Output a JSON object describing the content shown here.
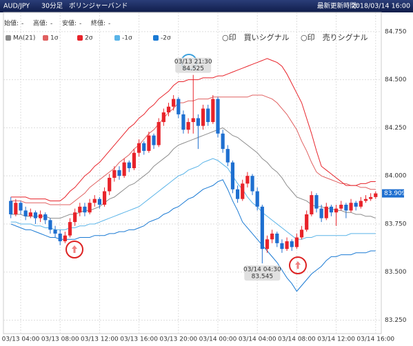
{
  "header": {
    "pair": "AUD/JPY",
    "timeframe": "30分足",
    "indicator": "ボリンジャーバンド",
    "updated_label": "最新更新時間:",
    "updated": "2018/03/14 16:00"
  },
  "ohlc_row": [
    {
      "label": "始値:",
      "value": "-"
    },
    {
      "label": "高値:",
      "value": "-"
    },
    {
      "label": "安値:",
      "value": "-"
    },
    {
      "label": "終値:",
      "value": "-"
    }
  ],
  "signal_legend": [
    {
      "text": "○印　買いシグナル",
      "color": "#e8232a"
    },
    {
      "text": "○印　売りシグナル",
      "color": "#3aa0dc"
    }
  ],
  "chart_data": {
    "type": "candlestick",
    "categories": [
      null,
      null,
      "03/13 04:00",
      null,
      null,
      null,
      null,
      null,
      null,
      null,
      "03/13 08:00",
      null,
      null,
      null,
      null,
      null,
      null,
      null,
      "03/13 12:00",
      null,
      null,
      null,
      null,
      null,
      null,
      null,
      "03/13 16:00",
      null,
      null,
      null,
      null,
      null,
      null,
      null,
      "03/13 20:00",
      null,
      null,
      null,
      null,
      null,
      null,
      null,
      "03/14 00:00",
      null,
      null,
      null,
      null,
      null,
      null,
      null,
      "03/14 04:00",
      null,
      null,
      null,
      null,
      null,
      null,
      null,
      "03/14 08:00",
      null,
      null,
      null,
      null,
      null,
      null,
      null,
      "03/14 12:00",
      null,
      null,
      null,
      null,
      null,
      null,
      null,
      "03/14 16:00"
    ],
    "up_color": "#e8232a",
    "down_color": "#1e6fd0",
    "last_color": "#1e6fd0",
    "candles": {
      "open": [
        83.87,
        83.8,
        83.86,
        83.82,
        83.79,
        83.81,
        83.78,
        83.8,
        83.77,
        83.72,
        83.7,
        83.66,
        83.69,
        83.76,
        83.81,
        83.84,
        83.81,
        83.86,
        83.88,
        83.85,
        83.92,
        83.99,
        84.03,
        84.0,
        84.07,
        84.04,
        84.12,
        84.17,
        84.13,
        84.21,
        84.16,
        84.28,
        84.33,
        84.36,
        84.4,
        84.32,
        84.24,
        84.28,
        84.3,
        84.26,
        84.35,
        84.28,
        84.4,
        84.22,
        84.14,
        84.07,
        83.93,
        83.88,
        83.96,
        84.0,
        83.92,
        83.84,
        83.62,
        83.67,
        83.7,
        83.65,
        83.62,
        83.66,
        83.63,
        83.68,
        83.72,
        83.8,
        83.9,
        83.83,
        83.78,
        83.84,
        83.81,
        83.83,
        83.85,
        83.82,
        83.86,
        83.84,
        83.87,
        83.88,
        83.89
      ],
      "high": [
        83.89,
        83.88,
        83.87,
        83.84,
        83.83,
        83.82,
        83.82,
        83.81,
        83.78,
        83.74,
        83.72,
        83.71,
        83.78,
        83.83,
        83.86,
        83.86,
        83.88,
        83.9,
        83.89,
        83.94,
        84.01,
        84.05,
        84.05,
        84.09,
        84.08,
        84.14,
        84.19,
        84.18,
        84.23,
        84.22,
        84.3,
        84.35,
        84.38,
        84.42,
        84.41,
        84.34,
        84.3,
        84.525,
        84.32,
        84.37,
        84.37,
        84.42,
        84.41,
        84.24,
        84.16,
        84.08,
        83.95,
        83.98,
        84.02,
        84.01,
        83.94,
        83.85,
        83.69,
        83.72,
        83.71,
        83.67,
        83.68,
        83.67,
        83.7,
        83.74,
        83.82,
        83.92,
        83.91,
        83.85,
        83.86,
        83.85,
        83.85,
        83.87,
        83.86,
        83.88,
        83.87,
        83.89,
        83.9,
        83.91,
        83.92
      ],
      "low": [
        83.78,
        83.79,
        83.8,
        83.77,
        83.78,
        83.75,
        83.76,
        83.75,
        83.7,
        83.68,
        83.64,
        83.65,
        83.68,
        83.74,
        83.79,
        83.79,
        83.8,
        83.84,
        83.83,
        83.84,
        83.9,
        83.97,
        83.98,
        83.99,
        84.02,
        84.03,
        84.1,
        84.11,
        84.12,
        84.14,
        84.15,
        84.26,
        84.31,
        84.34,
        84.3,
        84.22,
        84.22,
        84.22,
        84.14,
        84.24,
        84.26,
        84.27,
        84.2,
        84.12,
        84.05,
        83.91,
        83.86,
        83.87,
        83.94,
        83.9,
        83.82,
        83.545,
        83.6,
        83.65,
        83.63,
        83.6,
        83.61,
        83.61,
        83.62,
        83.67,
        83.71,
        83.79,
        83.81,
        83.76,
        83.77,
        83.79,
        83.74,
        83.82,
        83.78,
        83.81,
        83.82,
        83.83,
        83.86,
        83.87,
        83.88
      ],
      "close": [
        83.8,
        83.86,
        83.82,
        83.79,
        83.81,
        83.78,
        83.8,
        83.77,
        83.72,
        83.7,
        83.66,
        83.69,
        83.76,
        83.81,
        83.84,
        83.81,
        83.86,
        83.88,
        83.85,
        83.92,
        83.99,
        84.03,
        84.0,
        84.07,
        84.04,
        84.12,
        84.17,
        84.13,
        84.21,
        84.16,
        84.28,
        84.33,
        84.36,
        84.4,
        84.32,
        84.24,
        84.28,
        84.3,
        84.26,
        84.35,
        84.28,
        84.4,
        84.22,
        84.14,
        84.07,
        83.93,
        83.88,
        83.96,
        84.0,
        83.92,
        83.84,
        83.62,
        83.67,
        83.7,
        83.65,
        83.62,
        83.66,
        83.63,
        83.68,
        83.72,
        83.8,
        83.9,
        83.83,
        83.78,
        83.84,
        83.81,
        83.83,
        83.85,
        83.82,
        83.86,
        83.84,
        83.87,
        83.88,
        83.89,
        83.909
      ]
    },
    "last_label": "83.909",
    "series": [
      {
        "name": "MA(21)",
        "color": "#8c8c8c",
        "values": [
          83.8,
          83.8,
          83.8,
          83.79,
          83.79,
          83.79,
          83.79,
          83.79,
          83.78,
          83.78,
          83.78,
          83.79,
          83.8,
          83.8,
          83.81,
          83.82,
          83.82,
          83.83,
          83.84,
          83.86,
          83.88,
          83.89,
          83.91,
          83.93,
          83.95,
          83.96,
          83.98,
          84.0,
          84.02,
          84.05,
          84.07,
          84.09,
          84.11,
          84.14,
          84.16,
          84.17,
          84.18,
          84.19,
          84.2,
          84.21,
          84.22,
          84.23,
          84.24,
          84.25,
          84.23,
          84.21,
          84.2,
          84.18,
          84.16,
          84.14,
          84.12,
          84.09,
          84.07,
          84.04,
          84.02,
          83.99,
          83.95,
          83.92,
          83.89,
          83.88,
          83.87,
          83.85,
          83.84,
          83.84,
          83.83,
          83.83,
          83.82,
          83.82,
          83.81,
          83.81,
          83.8,
          83.8,
          83.79,
          83.79,
          83.78
        ]
      },
      {
        "name": "1σ",
        "color": "#e06060",
        "values": [
          83.87,
          83.87,
          83.87,
          83.86,
          83.86,
          83.86,
          83.86,
          83.86,
          83.85,
          83.85,
          83.85,
          83.85,
          83.85,
          83.87,
          83.89,
          83.91,
          83.94,
          83.96,
          83.98,
          84.0,
          84.02,
          84.04,
          84.07,
          84.09,
          84.11,
          84.14,
          84.16,
          84.19,
          84.22,
          84.24,
          84.27,
          84.3,
          84.33,
          84.35,
          84.38,
          84.38,
          84.39,
          84.39,
          84.4,
          84.4,
          84.4,
          84.41,
          84.41,
          84.41,
          84.41,
          84.41,
          84.41,
          84.41,
          84.41,
          84.42,
          84.42,
          84.42,
          84.41,
          84.4,
          84.38,
          84.35,
          84.32,
          84.28,
          84.24,
          84.18,
          84.13,
          84.07,
          84.02,
          84.0,
          83.99,
          83.98,
          83.97,
          83.96,
          83.96,
          83.95,
          83.95,
          83.94,
          83.94,
          83.93,
          83.93
        ]
      },
      {
        "name": "2σ",
        "color": "#e8232a",
        "values": [
          83.89,
          83.89,
          83.89,
          83.89,
          83.88,
          83.88,
          83.88,
          83.88,
          83.87,
          83.87,
          83.87,
          83.89,
          83.92,
          83.94,
          83.97,
          84.0,
          84.02,
          84.05,
          84.07,
          84.1,
          84.13,
          84.16,
          84.19,
          84.22,
          84.25,
          84.27,
          84.3,
          84.32,
          84.35,
          84.37,
          84.4,
          84.42,
          84.44,
          84.47,
          84.49,
          84.49,
          84.5,
          84.5,
          84.5,
          84.51,
          84.51,
          84.51,
          84.52,
          84.52,
          84.53,
          84.54,
          84.55,
          84.56,
          84.57,
          84.58,
          84.59,
          84.6,
          84.61,
          84.6,
          84.59,
          84.57,
          84.53,
          84.48,
          84.43,
          84.38,
          84.3,
          84.22,
          84.13,
          84.05,
          84.03,
          84.01,
          83.99,
          83.97,
          83.95,
          83.95,
          83.95,
          83.96,
          83.96,
          83.97,
          83.97
        ]
      },
      {
        "name": "-1σ",
        "color": "#5ab4e8",
        "values": [
          83.76,
          83.76,
          83.75,
          83.75,
          83.75,
          83.74,
          83.74,
          83.73,
          83.73,
          83.72,
          83.72,
          83.72,
          83.73,
          83.73,
          83.74,
          83.74,
          83.75,
          83.75,
          83.76,
          83.77,
          83.78,
          83.79,
          83.8,
          83.81,
          83.82,
          83.83,
          83.84,
          83.86,
          83.88,
          83.9,
          83.92,
          83.94,
          83.96,
          83.98,
          84.0,
          84.01,
          84.03,
          84.04,
          84.05,
          84.07,
          84.08,
          84.09,
          84.08,
          84.06,
          84.04,
          84.0,
          83.96,
          83.93,
          83.89,
          83.86,
          83.84,
          83.81,
          83.79,
          83.77,
          83.75,
          83.73,
          83.71,
          83.69,
          83.67,
          83.67,
          83.68,
          83.68,
          83.69,
          83.69,
          83.69,
          83.69,
          83.69,
          83.69,
          83.69,
          83.7,
          83.7,
          83.7,
          83.7,
          83.7,
          83.7
        ]
      },
      {
        "name": "-2σ",
        "color": "#1a7ad4",
        "values": [
          83.75,
          83.74,
          83.73,
          83.72,
          83.72,
          83.71,
          83.7,
          83.69,
          83.68,
          83.68,
          83.67,
          83.67,
          83.67,
          83.67,
          83.68,
          83.68,
          83.68,
          83.69,
          83.69,
          83.69,
          83.7,
          83.7,
          83.71,
          83.71,
          83.72,
          83.72,
          83.73,
          83.74,
          83.76,
          83.77,
          83.78,
          83.8,
          83.81,
          83.83,
          83.84,
          83.86,
          83.88,
          83.89,
          83.91,
          83.93,
          83.94,
          83.95,
          83.97,
          83.98,
          83.93,
          83.87,
          83.82,
          83.76,
          83.73,
          83.7,
          83.67,
          83.64,
          83.61,
          83.58,
          83.55,
          83.51,
          83.47,
          83.44,
          83.4,
          83.43,
          83.46,
          83.49,
          83.51,
          83.53,
          83.56,
          83.58,
          83.58,
          83.59,
          83.59,
          83.59,
          83.6,
          83.6,
          83.6,
          83.61,
          83.61
        ]
      }
    ],
    "annotations": [
      {
        "label": "03/13 21:30",
        "value": 84.525
      },
      {
        "label": "03/14 04:30",
        "value": 83.545
      }
    ],
    "ylim": [
      83.18,
      84.85
    ],
    "yticks": [
      {
        "value": 84.75,
        "label": "84.750"
      },
      {
        "value": 84.5,
        "label": "84.500"
      },
      {
        "value": 84.25,
        "label": "84.250"
      },
      {
        "value": 84,
        "label": "84.000"
      },
      {
        "value": 83.75,
        "label": "83.750"
      },
      {
        "value": 83.5,
        "label": "83.500"
      },
      {
        "value": 83.25,
        "label": "83.250"
      }
    ],
    "grid": true
  }
}
